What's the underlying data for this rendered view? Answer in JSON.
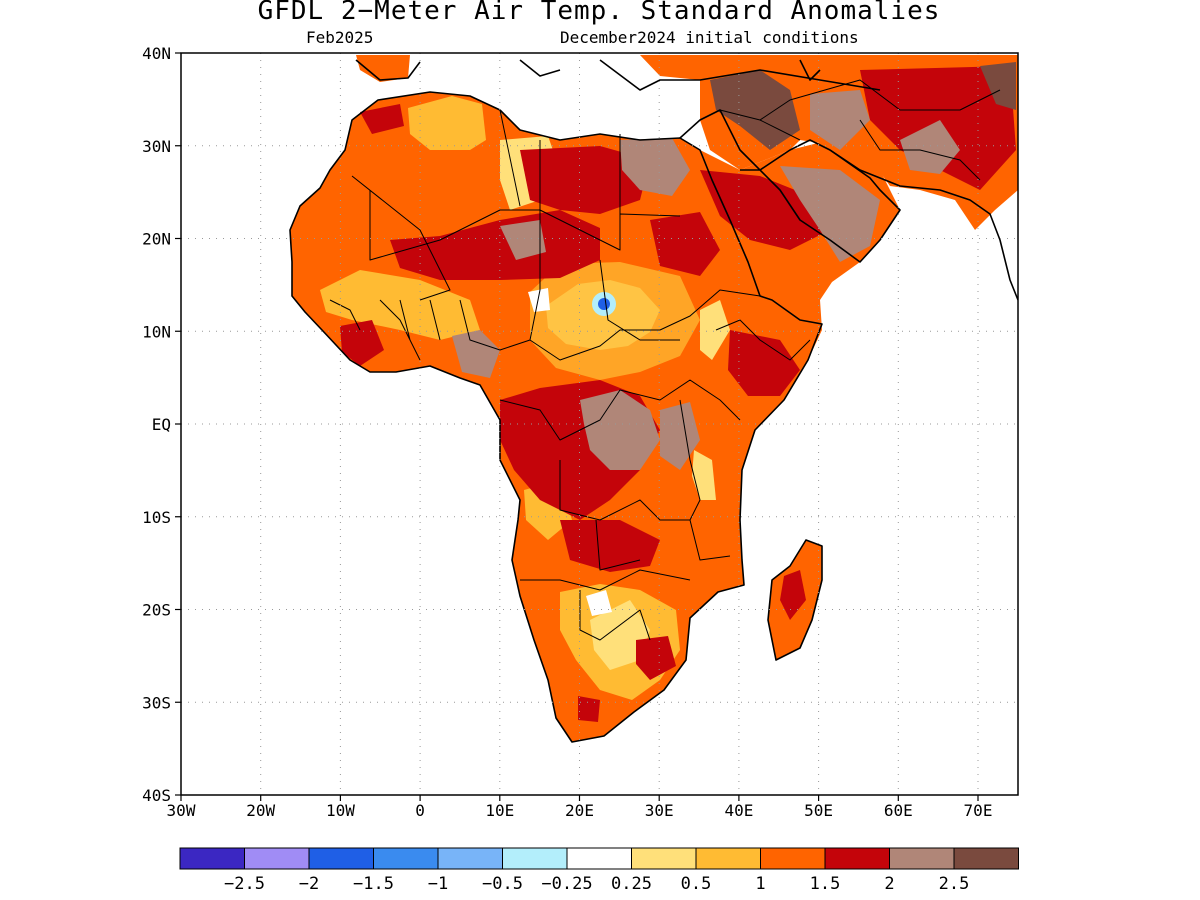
{
  "title": "GFDL 2−Meter Air Temp. Standard Anomalies",
  "subtitle_left": "Feb2025",
  "subtitle_right": "December2024 initial conditions",
  "axes": {
    "lon_ticks": [
      "30W",
      "20W",
      "10W",
      "0",
      "10E",
      "20E",
      "30E",
      "40E",
      "50E",
      "60E",
      "70E"
    ],
    "lat_ticks": [
      "40N",
      "30N",
      "20N",
      "10N",
      "EQ",
      "10S",
      "20S",
      "30S",
      "40S"
    ]
  },
  "colorbar": {
    "colors": [
      "#3b27c2",
      "#a08cf5",
      "#1f5fe6",
      "#3a8bef",
      "#78b4f8",
      "#b3eefb",
      "#ffffff",
      "#ffe07a",
      "#ffbb33",
      "#ff6400",
      "#c4040a",
      "#b08678",
      "#7a4a3e"
    ],
    "labels": [
      "−2.5",
      "−2",
      "−1.5",
      "−1",
      "−0.5",
      "−0.25",
      "0.25",
      "0.5",
      "1",
      "1.5",
      "2",
      "2.5"
    ]
  }
}
